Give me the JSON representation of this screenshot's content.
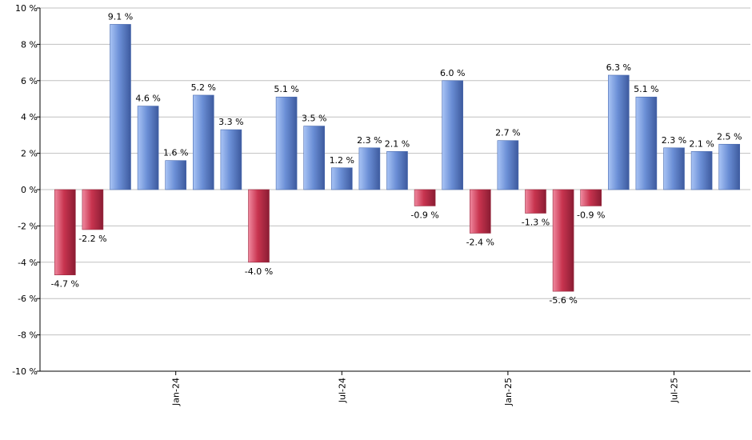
{
  "chart_data": {
    "type": "bar",
    "title": "",
    "xlabel": "",
    "ylabel": "",
    "ylim": [
      -10,
      10
    ],
    "y_ticks": [
      10,
      8,
      6,
      4,
      2,
      0,
      -2,
      -4,
      -6,
      -8,
      -10
    ],
    "y_tick_labels": [
      "10 %",
      "8 %",
      "6 %",
      "4 %",
      "2 %",
      "0 %",
      "-2 %",
      "-4 %",
      "-6 %",
      "-8 %",
      "-10 %"
    ],
    "grid": true,
    "x_tick_labels": [
      {
        "label": "Jan-24",
        "index": 4
      },
      {
        "label": "Jul-24",
        "index": 10
      },
      {
        "label": "Jan-25",
        "index": 16
      },
      {
        "label": "Jul-25",
        "index": 22
      }
    ],
    "values": [
      -4.7,
      -2.2,
      9.1,
      4.6,
      1.6,
      5.2,
      3.3,
      -4.0,
      5.1,
      3.5,
      1.2,
      2.3,
      2.1,
      -0.9,
      6.0,
      -2.4,
      2.7,
      -1.3,
      -5.6,
      -0.9,
      6.3,
      5.1,
      2.3,
      2.1,
      2.5
    ],
    "value_labels": [
      "-4.7 %",
      "-2.2 %",
      "9.1 %",
      "4.6 %",
      "1.6 %",
      "5.2 %",
      "3.3 %",
      "-4.0 %",
      "5.1 %",
      "3.5 %",
      "1.2 %",
      "2.3 %",
      "2.1 %",
      "-0.9 %",
      "6.0 %",
      "-2.4 %",
      "2.7 %",
      "-1.3 %",
      "-5.6 %",
      "-0.9 %",
      "6.3 %",
      "5.1 %",
      "2.3 %",
      "2.1 %",
      "2.5 %"
    ],
    "colors": {
      "positive": "#6b8fd6",
      "positive_light": "#a9c4f5",
      "positive_dark": "#3d5a9e",
      "negative": "#c8344f",
      "negative_light": "#f08aa0",
      "negative_dark": "#8a1c33",
      "grid": "#c0c0c0",
      "axis": "#000000"
    }
  }
}
